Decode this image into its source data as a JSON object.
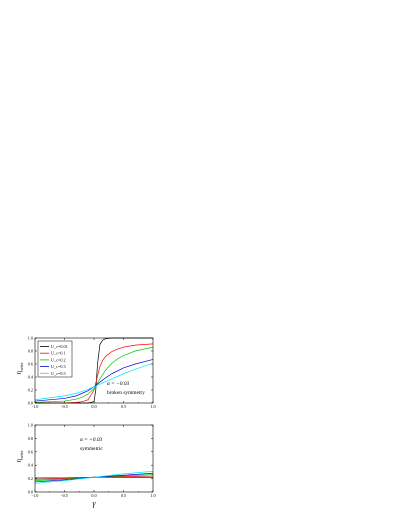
{
  "chart_data": [
    {
      "type": "line",
      "title": "",
      "xlabel": "",
      "ylabel_main": "η",
      "ylabel_sub": "order",
      "xlim": [
        -1.0,
        1.0
      ],
      "ylim": [
        0.0,
        1.0
      ],
      "x_ticks": [
        "-1.0",
        "-0.5",
        "0.0",
        "0.5",
        "1.0"
      ],
      "y_ticks": [
        "0.0",
        "0.2",
        "0.4",
        "0.6",
        "0.8",
        "1.0"
      ],
      "legend": {
        "placement": "top-left",
        "entries": [
          "U_c=0.01",
          "U_c=0.1",
          "U_c=0.2",
          "U_c=0.3",
          "U_c=0.5"
        ]
      },
      "annotation": {
        "line1": "α = −0.03",
        "line2": "broken symmetry"
      },
      "series": [
        {
          "name": "U_c=0.01",
          "color": "#000000",
          "x": [
            -1.0,
            -0.5,
            -0.2,
            -0.1,
            0.0,
            0.03,
            0.06,
            0.1,
            0.15,
            0.2,
            0.3,
            0.5,
            1.0
          ],
          "y": [
            0.0,
            0.0,
            0.0,
            0.0,
            0.02,
            0.2,
            0.6,
            0.9,
            0.97,
            0.99,
            1.0,
            1.0,
            1.0
          ]
        },
        {
          "name": "U_c=0.1",
          "color": "#ff0000",
          "x": [
            -1.0,
            -0.5,
            -0.3,
            -0.2,
            -0.1,
            0.0,
            0.05,
            0.1,
            0.15,
            0.2,
            0.3,
            0.4,
            0.5,
            0.7,
            1.0
          ],
          "y": [
            0.0,
            0.0,
            0.01,
            0.02,
            0.05,
            0.2,
            0.38,
            0.56,
            0.66,
            0.72,
            0.79,
            0.83,
            0.86,
            0.89,
            0.91
          ]
        },
        {
          "name": "U_c=0.2",
          "color": "#00cc00",
          "x": [
            -1.0,
            -0.5,
            -0.3,
            -0.2,
            -0.1,
            0.0,
            0.1,
            0.2,
            0.3,
            0.4,
            0.5,
            0.7,
            1.0
          ],
          "y": [
            0.01,
            0.03,
            0.06,
            0.09,
            0.14,
            0.22,
            0.37,
            0.51,
            0.61,
            0.68,
            0.73,
            0.8,
            0.86
          ]
        },
        {
          "name": "U_c=0.3",
          "color": "#0000dd",
          "x": [
            -1.0,
            -0.5,
            -0.3,
            -0.2,
            -0.1,
            0.0,
            0.1,
            0.2,
            0.3,
            0.5,
            0.7,
            1.0
          ],
          "y": [
            0.03,
            0.07,
            0.11,
            0.15,
            0.19,
            0.25,
            0.32,
            0.39,
            0.45,
            0.54,
            0.6,
            0.67
          ]
        },
        {
          "name": "U_c=0.5",
          "color": "#00e5ff",
          "x": [
            -1.0,
            -0.5,
            -0.3,
            -0.2,
            -0.1,
            0.0,
            0.1,
            0.2,
            0.3,
            0.5,
            0.7,
            1.0
          ],
          "y": [
            0.05,
            0.11,
            0.15,
            0.18,
            0.21,
            0.25,
            0.29,
            0.33,
            0.37,
            0.45,
            0.52,
            0.61
          ]
        }
      ]
    },
    {
      "type": "line",
      "title": "",
      "xlabel": "γ",
      "ylabel_main": "η",
      "ylabel_sub": "order",
      "xlim": [
        -1.0,
        1.0
      ],
      "ylim": [
        0.0,
        1.0
      ],
      "x_ticks": [
        "-1.0",
        "-0.5",
        "0.0",
        "0.5",
        "1.0"
      ],
      "y_ticks": [
        "0.0",
        "0.2",
        "0.4",
        "0.6",
        "0.8",
        "1.0"
      ],
      "annotation": {
        "line1": "α = +0.03",
        "line2": "symmetric"
      },
      "series": [
        {
          "name": "U_c=0.01",
          "color": "#000000",
          "x": [
            -1.0,
            -0.5,
            0.0,
            0.5,
            1.0
          ],
          "y": [
            0.21,
            0.21,
            0.22,
            0.22,
            0.22
          ]
        },
        {
          "name": "U_c=0.1",
          "color": "#ff0000",
          "x": [
            -1.0,
            -0.5,
            0.0,
            0.5,
            1.0
          ],
          "y": [
            0.19,
            0.2,
            0.22,
            0.23,
            0.24
          ]
        },
        {
          "name": "U_c=0.2",
          "color": "#00cc00",
          "x": [
            -1.0,
            -0.5,
            0.0,
            0.5,
            1.0
          ],
          "y": [
            0.17,
            0.19,
            0.22,
            0.24,
            0.26
          ]
        },
        {
          "name": "U_c=0.3",
          "color": "#0000dd",
          "x": [
            -1.0,
            -0.5,
            0.0,
            0.5,
            1.0
          ],
          "y": [
            0.15,
            0.18,
            0.22,
            0.25,
            0.28
          ]
        },
        {
          "name": "U_c=0.5",
          "color": "#00e5ff",
          "x": [
            -1.0,
            -0.5,
            0.0,
            0.5,
            1.0
          ],
          "y": [
            0.13,
            0.17,
            0.22,
            0.27,
            0.31
          ]
        }
      ]
    }
  ]
}
